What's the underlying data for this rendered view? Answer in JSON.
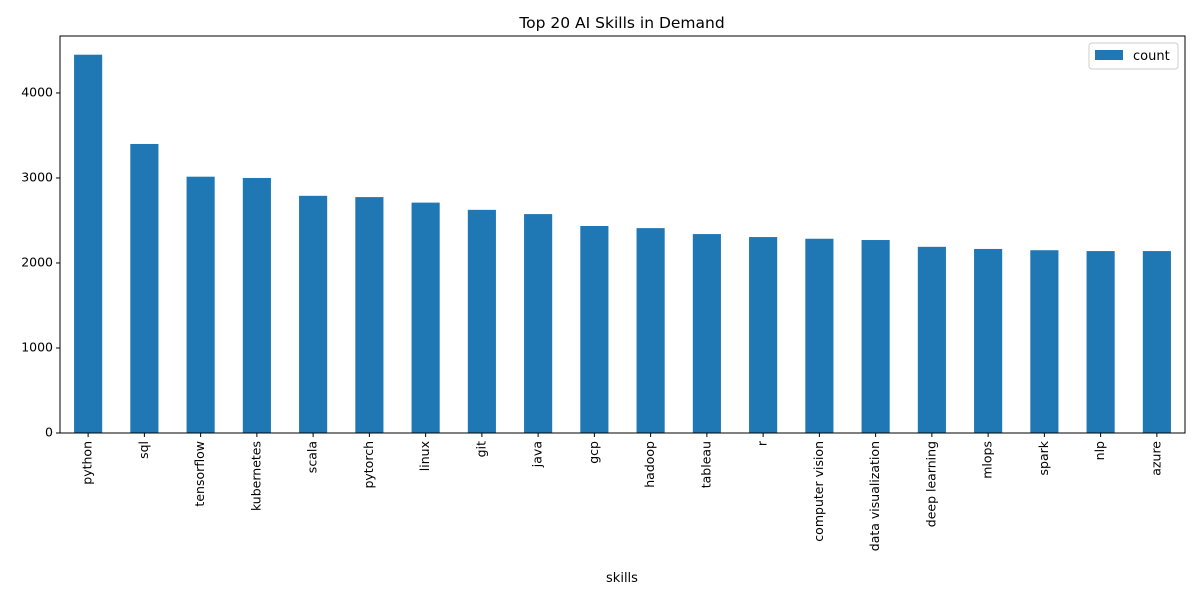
{
  "chart_data": {
    "type": "bar",
    "title": "Top 20 AI Skills in Demand",
    "xlabel": "skills",
    "ylabel": "",
    "categories": [
      "python",
      "sql",
      "tensorflow",
      "kubernetes",
      "scala",
      "pytorch",
      "linux",
      "git",
      "java",
      "gcp",
      "hadoop",
      "tableau",
      "r",
      "computer vision",
      "data visualization",
      "deep learning",
      "mlops",
      "spark",
      "nlp",
      "azure"
    ],
    "series": [
      {
        "name": "count",
        "values": [
          4450,
          3400,
          3015,
          3000,
          2790,
          2775,
          2710,
          2625,
          2575,
          2435,
          2410,
          2340,
          2305,
          2285,
          2270,
          2190,
          2165,
          2150,
          2140,
          2140
        ]
      }
    ],
    "ylim": [
      0,
      4670
    ],
    "yticks": [
      0,
      1000,
      2000,
      3000,
      4000
    ],
    "grid": false,
    "legend": "top-right",
    "colors": {
      "bar": "#1f77b4"
    }
  }
}
